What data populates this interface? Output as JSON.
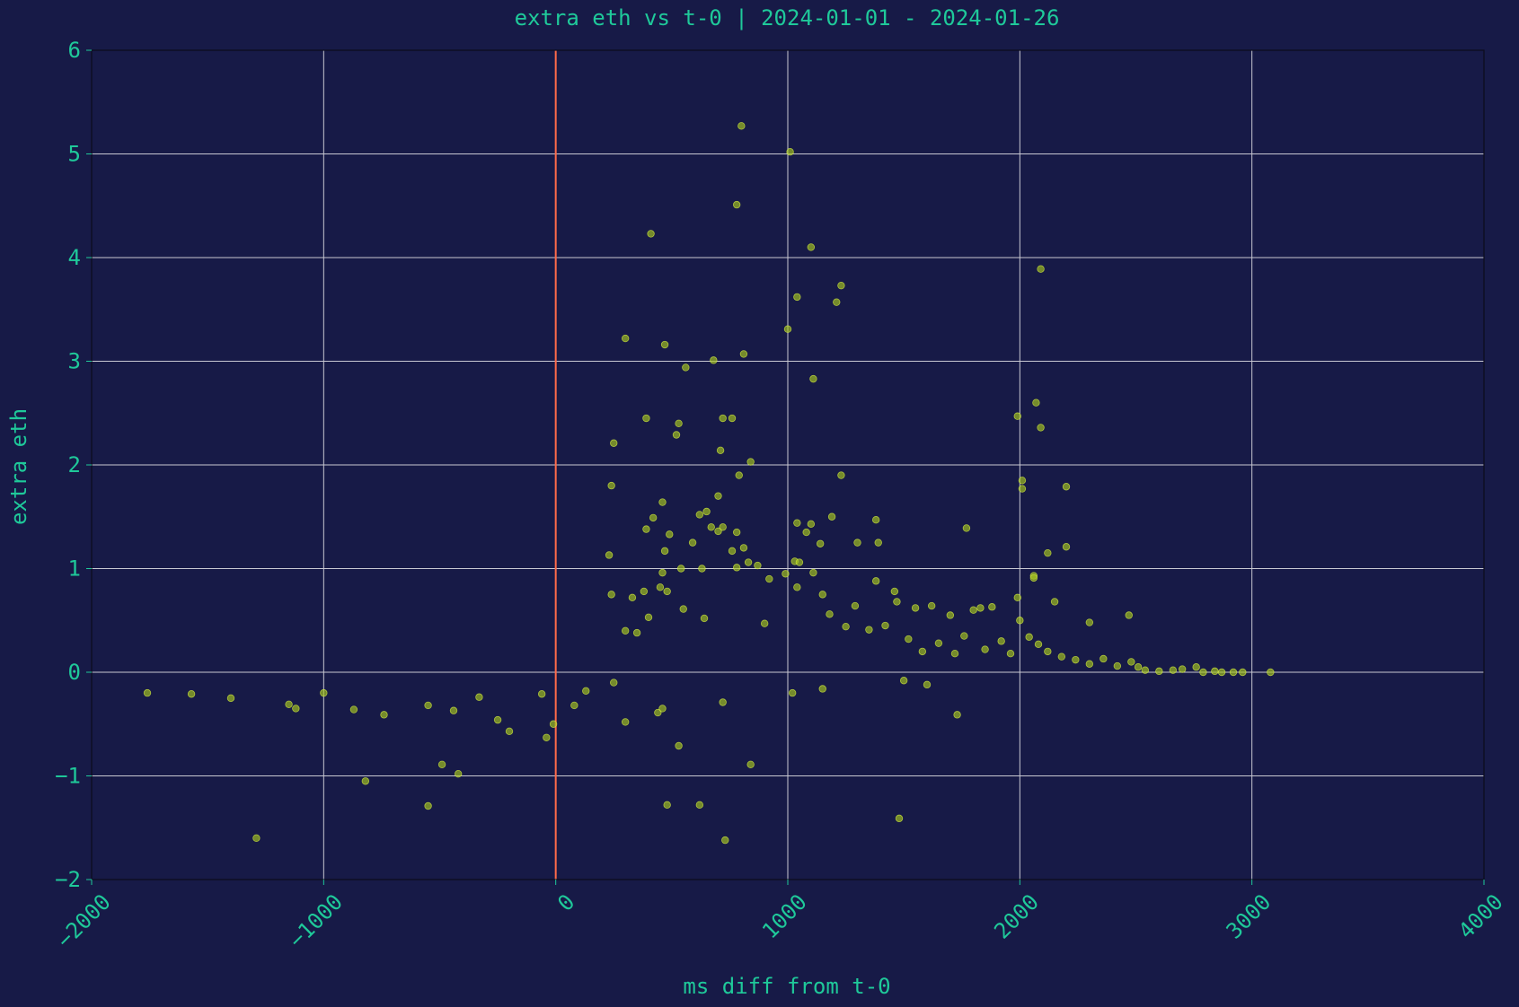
{
  "colors": {
    "background": "#171a47",
    "text": "#1fc99a",
    "grid": "#c8c8d2",
    "marker_fill": "#a8c81e",
    "marker_edge": "#d6ef40",
    "reference_line": "#ff6b4a",
    "axis_edge": "#0c0c1c"
  },
  "chart_data": {
    "type": "scatter",
    "title": "extra eth vs t-0 | 2024-01-01 - 2024-01-26",
    "xlabel": "ms diff from t-0",
    "ylabel": "extra eth",
    "xlim": [
      -2000,
      4000
    ],
    "ylim": [
      -2,
      6
    ],
    "xticks": [
      -2000,
      -1000,
      0,
      1000,
      2000,
      3000,
      4000
    ],
    "xtick_labels": [
      "−2000",
      "−1000",
      "0",
      "1000",
      "2000",
      "3000",
      "4000"
    ],
    "yticks": [
      -2,
      -1,
      0,
      1,
      2,
      3,
      4,
      5,
      6
    ],
    "ytick_labels": [
      "−2",
      "−1",
      "0",
      "1",
      "2",
      "3",
      "4",
      "5",
      "6"
    ],
    "grid": true,
    "vertical_reference_x": 0,
    "points": [
      [
        800,
        5.27
      ],
      [
        1010,
        5.02
      ],
      [
        780,
        4.51
      ],
      [
        410,
        4.23
      ],
      [
        1100,
        4.1
      ],
      [
        2090,
        3.89
      ],
      [
        1230,
        3.73
      ],
      [
        1040,
        3.62
      ],
      [
        1210,
        3.57
      ],
      [
        1000,
        3.31
      ],
      [
        300,
        3.22
      ],
      [
        470,
        3.16
      ],
      [
        810,
        3.07
      ],
      [
        680,
        3.01
      ],
      [
        560,
        2.94
      ],
      [
        1110,
        2.83
      ],
      [
        2070,
        2.6
      ],
      [
        1990,
        2.47
      ],
      [
        390,
        2.45
      ],
      [
        720,
        2.45
      ],
      [
        760,
        2.45
      ],
      [
        530,
        2.4
      ],
      [
        2090,
        2.36
      ],
      [
        520,
        2.29
      ],
      [
        250,
        2.21
      ],
      [
        710,
        2.14
      ],
      [
        840,
        2.03
      ],
      [
        790,
        1.9
      ],
      [
        1230,
        1.9
      ],
      [
        2010,
        1.85
      ],
      [
        240,
        1.8
      ],
      [
        2200,
        1.79
      ],
      [
        2010,
        1.77
      ],
      [
        700,
        1.7
      ],
      [
        460,
        1.64
      ],
      [
        650,
        1.55
      ],
      [
        620,
        1.52
      ],
      [
        1190,
        1.5
      ],
      [
        420,
        1.49
      ],
      [
        1380,
        1.47
      ],
      [
        1040,
        1.44
      ],
      [
        1100,
        1.43
      ],
      [
        670,
        1.4
      ],
      [
        720,
        1.4
      ],
      [
        1770,
        1.39
      ],
      [
        390,
        1.38
      ],
      [
        700,
        1.36
      ],
      [
        780,
        1.35
      ],
      [
        1080,
        1.35
      ],
      [
        490,
        1.33
      ],
      [
        590,
        1.25
      ],
      [
        1390,
        1.25
      ],
      [
        1140,
        1.24
      ],
      [
        1300,
        1.25
      ],
      [
        2200,
        1.21
      ],
      [
        810,
        1.2
      ],
      [
        760,
        1.17
      ],
      [
        470,
        1.17
      ],
      [
        2120,
        1.15
      ],
      [
        230,
        1.13
      ],
      [
        1030,
        1.07
      ],
      [
        830,
        1.06
      ],
      [
        1050,
        1.06
      ],
      [
        540,
        1.0
      ],
      [
        630,
        1.0
      ],
      [
        780,
        1.01
      ],
      [
        870,
        1.03
      ],
      [
        460,
        0.96
      ],
      [
        1110,
        0.96
      ],
      [
        990,
        0.95
      ],
      [
        920,
        0.9
      ],
      [
        1380,
        0.88
      ],
      [
        2060,
        0.93
      ],
      [
        2060,
        0.91
      ],
      [
        480,
        0.78
      ],
      [
        330,
        0.72
      ],
      [
        380,
        0.78
      ],
      [
        450,
        0.82
      ],
      [
        1460,
        0.78
      ],
      [
        1470,
        0.68
      ],
      [
        1040,
        0.82
      ],
      [
        1150,
        0.75
      ],
      [
        1550,
        0.62
      ],
      [
        1620,
        0.64
      ],
      [
        1800,
        0.6
      ],
      [
        1880,
        0.63
      ],
      [
        1990,
        0.72
      ],
      [
        2000,
        0.5
      ],
      [
        2150,
        0.68
      ],
      [
        2300,
        0.48
      ],
      [
        2470,
        0.55
      ],
      [
        1700,
        0.55
      ],
      [
        1830,
        0.62
      ],
      [
        240,
        0.75
      ],
      [
        300,
        0.4
      ],
      [
        350,
        0.38
      ],
      [
        400,
        0.53
      ],
      [
        550,
        0.61
      ],
      [
        640,
        0.52
      ],
      [
        900,
        0.47
      ],
      [
        1180,
        0.56
      ],
      [
        1250,
        0.44
      ],
      [
        1290,
        0.64
      ],
      [
        1350,
        0.41
      ],
      [
        1420,
        0.45
      ],
      [
        1520,
        0.32
      ],
      [
        1580,
        0.2
      ],
      [
        1650,
        0.28
      ],
      [
        1720,
        0.18
      ],
      [
        1760,
        0.35
      ],
      [
        1850,
        0.22
      ],
      [
        1920,
        0.3
      ],
      [
        1960,
        0.18
      ],
      [
        2040,
        0.34
      ],
      [
        2080,
        0.27
      ],
      [
        2120,
        0.2
      ],
      [
        2180,
        0.15
      ],
      [
        2240,
        0.12
      ],
      [
        2300,
        0.08
      ],
      [
        2360,
        0.13
      ],
      [
        2420,
        0.06
      ],
      [
        2480,
        0.1
      ],
      [
        2510,
        0.05
      ],
      [
        2540,
        0.02
      ],
      [
        2600,
        0.01
      ],
      [
        2660,
        0.02
      ],
      [
        2700,
        0.03
      ],
      [
        2760,
        0.05
      ],
      [
        2840,
        0.01
      ],
      [
        2920,
        0.0
      ],
      [
        2960,
        0.0
      ],
      [
        3080,
        0.0
      ],
      [
        2790,
        0.0
      ],
      [
        2870,
        0.0
      ],
      [
        -1290,
        -1.6
      ],
      [
        -820,
        -1.05
      ],
      [
        -550,
        -1.29
      ],
      [
        -490,
        -0.89
      ],
      [
        -420,
        -0.98
      ],
      [
        480,
        -1.28
      ],
      [
        620,
        -1.28
      ],
      [
        730,
        -1.62
      ],
      [
        1480,
        -1.41
      ],
      [
        840,
        -0.89
      ],
      [
        530,
        -0.71
      ],
      [
        -40,
        -0.63
      ],
      [
        -200,
        -0.57
      ],
      [
        -10,
        -0.5
      ],
      [
        300,
        -0.48
      ],
      [
        440,
        -0.39
      ],
      [
        460,
        -0.35
      ],
      [
        1730,
        -0.41
      ],
      [
        -550,
        -0.32
      ],
      [
        -440,
        -0.37
      ],
      [
        -740,
        -0.41
      ],
      [
        -1120,
        -0.35
      ],
      [
        -1150,
        -0.31
      ],
      [
        -870,
        -0.36
      ],
      [
        -1000,
        -0.2
      ],
      [
        -1400,
        -0.25
      ],
      [
        -1570,
        -0.21
      ],
      [
        -1760,
        -0.2
      ],
      [
        -250,
        -0.46
      ],
      [
        -330,
        -0.24
      ],
      [
        -60,
        -0.21
      ],
      [
        80,
        -0.32
      ],
      [
        130,
        -0.18
      ],
      [
        250,
        -0.1
      ],
      [
        720,
        -0.29
      ],
      [
        1020,
        -0.2
      ],
      [
        1150,
        -0.16
      ],
      [
        1600,
        -0.12
      ],
      [
        1500,
        -0.08
      ]
    ]
  }
}
